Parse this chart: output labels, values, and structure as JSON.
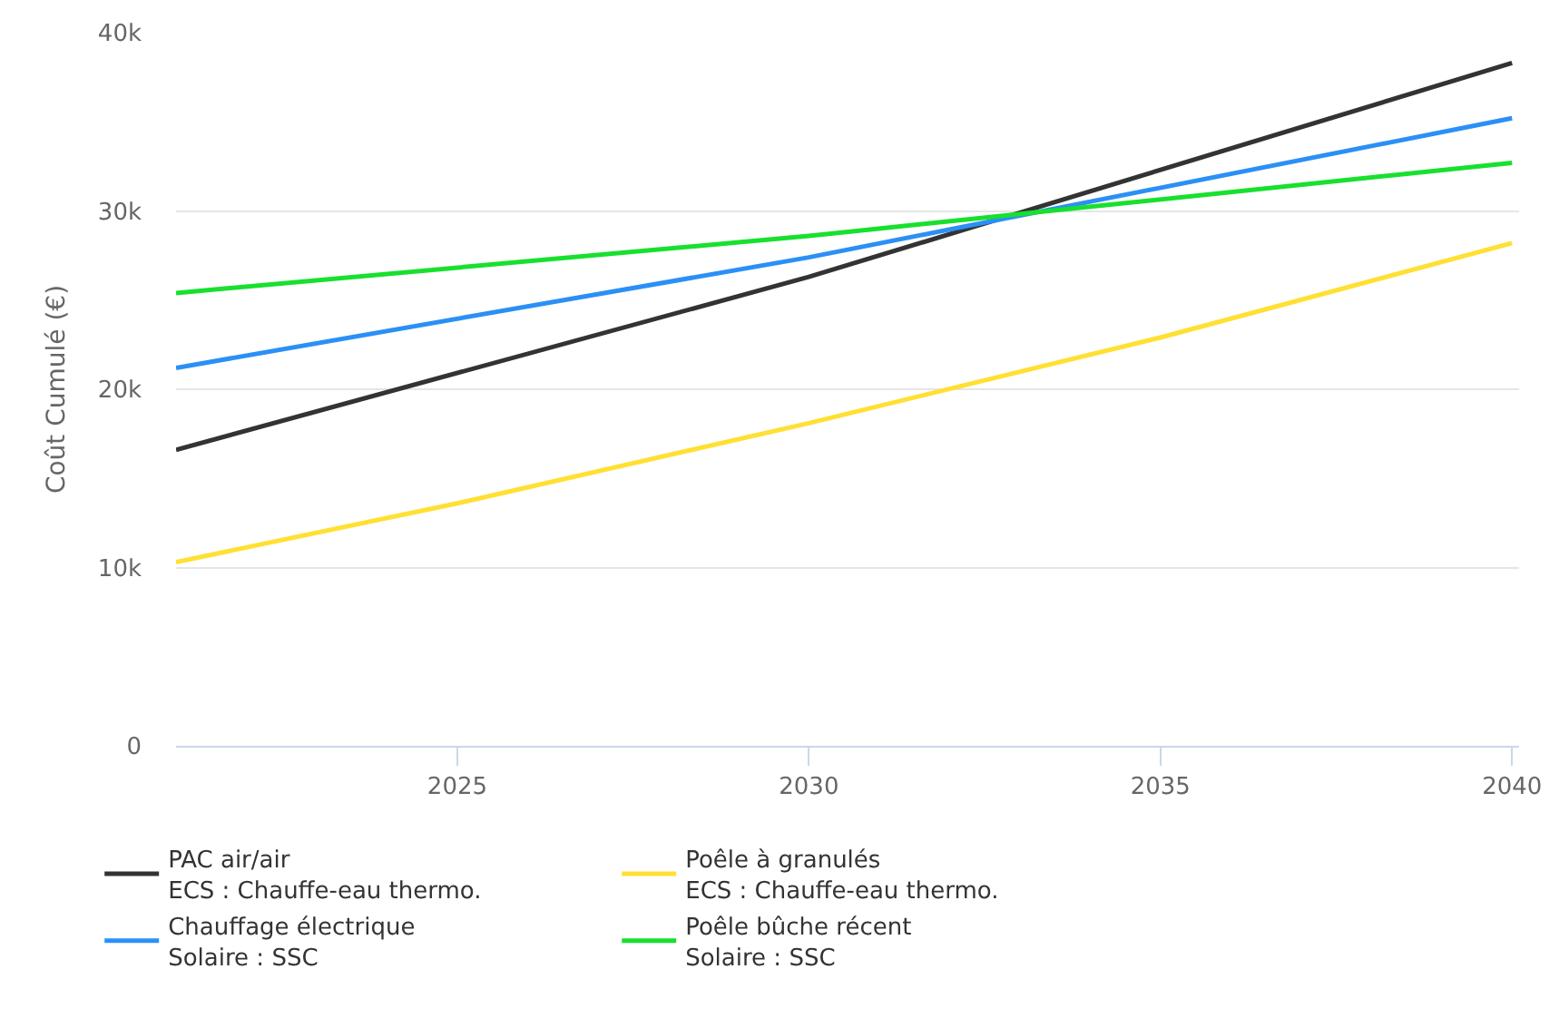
{
  "chart_data": {
    "type": "line",
    "ylabel": "Coût Cumulé (€)",
    "series": [
      {
        "name": "PAC air/air\nECS : Chauffe-eau thermo.",
        "color": "#333333",
        "x": [
          2021,
          2030,
          2040
        ],
        "values": [
          16600,
          26300,
          38300
        ]
      },
      {
        "name": "Poêle à granulés\nECS : Chauffe-eau thermo.",
        "color": "#ffe033",
        "x": [
          2021,
          2025,
          2030,
          2035,
          2040
        ],
        "values": [
          10300,
          13600,
          18100,
          22900,
          28200
        ]
      },
      {
        "name": "Chauffage électrique\nSolaire : SSC",
        "color": "#2b90f5",
        "x": [
          2021,
          2030,
          2040
        ],
        "values": [
          21200,
          27400,
          35200
        ]
      },
      {
        "name": "Poêle bûche récent\nSolaire : SSC",
        "color": "#18e02e",
        "x": [
          2021,
          2030,
          2040
        ],
        "values": [
          25400,
          28600,
          32700
        ]
      }
    ],
    "xlim": [
      2021,
      2040.1
    ],
    "xticks": [
      2025,
      2030,
      2035,
      2040
    ],
    "ylim": [
      0,
      40000
    ],
    "yticks": [
      {
        "value": 0,
        "label": "0"
      },
      {
        "value": 10000,
        "label": "10k"
      },
      {
        "value": 20000,
        "label": "20k"
      },
      {
        "value": 30000,
        "label": "30k"
      },
      {
        "value": 40000,
        "label": "40k"
      }
    ],
    "grid": "y",
    "legend": "bottom",
    "marker": "none",
    "line_style": "solid"
  }
}
